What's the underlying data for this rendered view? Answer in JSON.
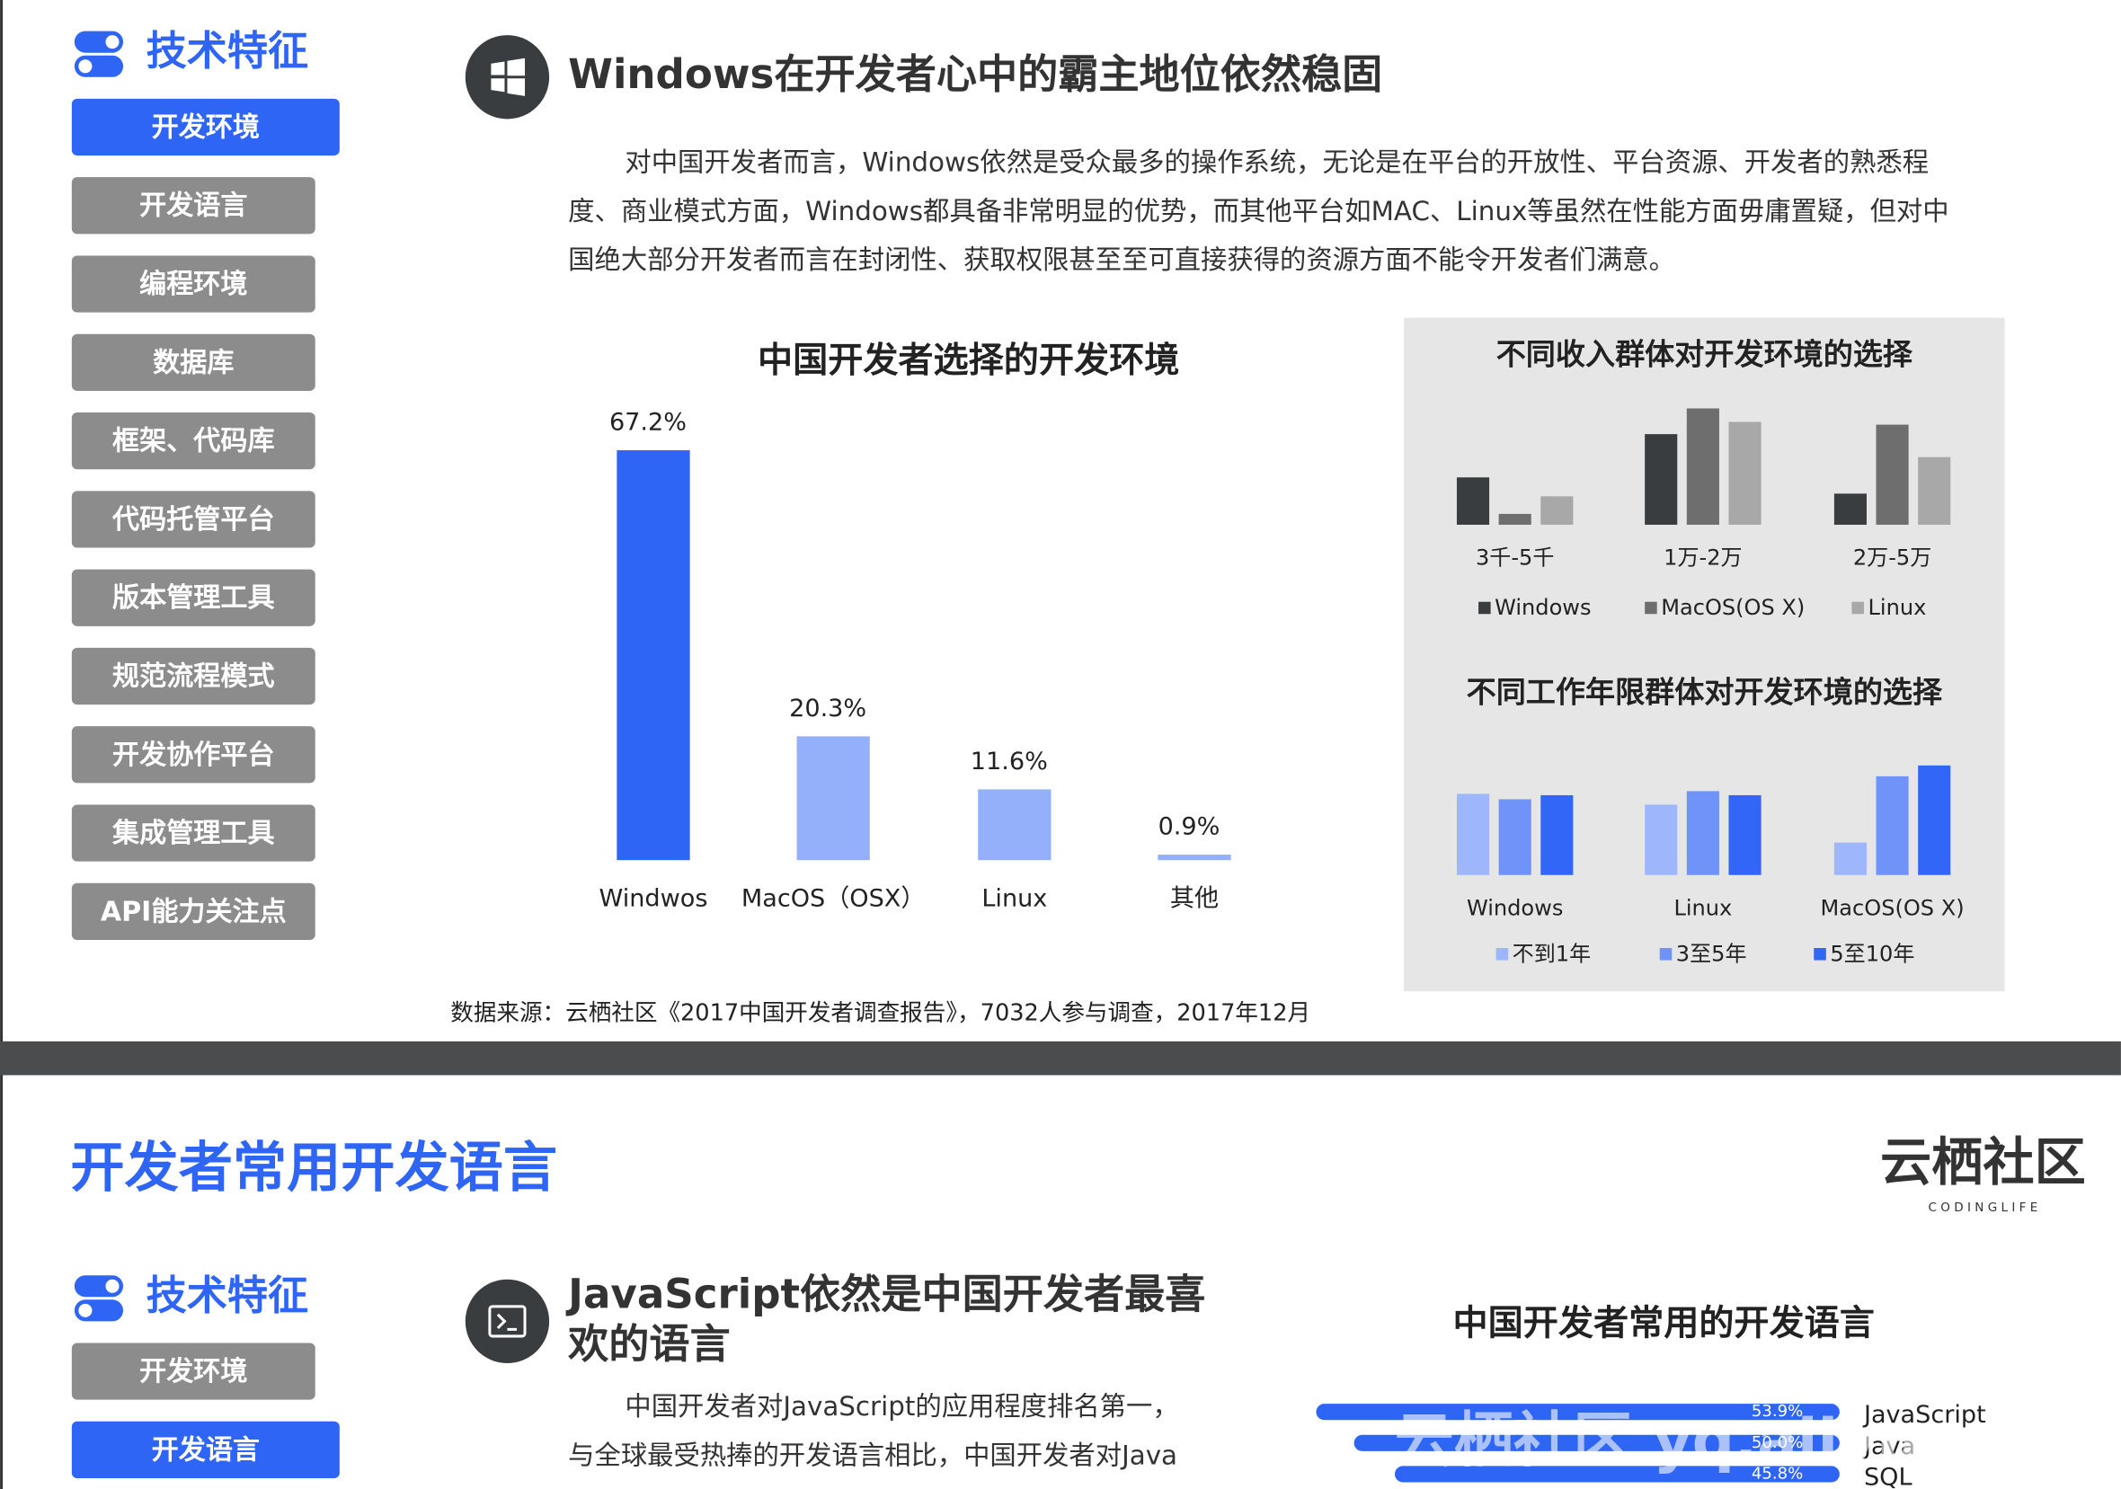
{
  "page1": {
    "sidebar": {
      "title": "技术特征",
      "items": [
        "开发环境",
        "开发语言",
        "编程环境",
        "数据库",
        "框架、代码库",
        "代码托管平台",
        "版本管理工具",
        "规范流程模式",
        "开发协作平台",
        "集成管理工具",
        "API能力关注点"
      ],
      "active": 0
    },
    "heading": "Windows在开发者心中的霸主地位依然稳固",
    "paragraph_lines": [
      "对中国开发者而言，Windows依然是受众最多的操作系统，无论是在平台的开放性、平台资源、开发者的熟悉程",
      "度、商业模式方面，Windows都具备非常明显的优势，而其他平台如MAC、Linux等虽然在性能方面毋庸置疑，但对中",
      "国绝大部分开发者而言在封闭性、获取权限甚至至可直接获得的资源方面不能令开发者们满意。"
    ],
    "main_chart": {
      "type": "bar",
      "title": "中国开发者选择的开发环境",
      "categories": [
        "Windwos",
        "MacOS（OSX）",
        "Linux",
        "其他"
      ],
      "values": [
        67.2,
        20.3,
        11.6,
        0.9
      ],
      "value_labels": [
        "67.2%",
        "20.3%",
        "11.6%",
        "0.9%"
      ],
      "colors": [
        "#2f65f5",
        "#94b0fb",
        "#94b0fb",
        "#94b0fb"
      ]
    },
    "income_chart": {
      "type": "bar",
      "title": "不同收入群体对开发环境的选择",
      "categories": [
        "3千-5千",
        "1万-2万",
        "2万-5万"
      ],
      "series": [
        {
          "name": "Windows",
          "color": "#3a3d40",
          "values": [
            35,
            67,
            23
          ]
        },
        {
          "name": "MacOS(OS X)",
          "color": "#6e6e6e",
          "values": [
            8,
            86,
            74
          ]
        },
        {
          "name": "Linux",
          "color": "#a8a8a8",
          "values": [
            21,
            76,
            50
          ]
        }
      ]
    },
    "years_chart": {
      "type": "bar",
      "title": "不同工作年限群体对开发环境的选择",
      "categories": [
        "Windows",
        "Linux",
        "MacOS(OS X)"
      ],
      "series": [
        {
          "name": "不到1年",
          "color": "#9db6fc",
          "values": [
            60,
            52,
            24
          ]
        },
        {
          "name": "3至5年",
          "color": "#6f93f8",
          "values": [
            56,
            62,
            73
          ]
        },
        {
          "name": "5至10年",
          "color": "#3166f6",
          "values": [
            59,
            59,
            81
          ]
        }
      ]
    },
    "source": "数据来源：云栖社区《2017中国开发者调查报告》，7032人参与调查，2017年12月"
  },
  "page2": {
    "title": "开发者常用开发语言",
    "logo": "云栖社区",
    "logo_sub": "C O D I N G   L I F E",
    "sidebar": {
      "title": "技术特征",
      "items": [
        "开发环境",
        "开发语言"
      ],
      "active": 1
    },
    "heading_lines": [
      "JavaScript依然是中国开发者最喜",
      "欢的语言"
    ],
    "paragraph_lines": [
      "中国开发者对JavaScript的应用程度排名第一，",
      "与全球最受热捧的开发语言相比，中国开发者对Java"
    ],
    "lang_chart": {
      "type": "hbar",
      "title": "中国开发者常用的开发语言",
      "categories": [
        "JavaScript",
        "Java",
        "SQL"
      ],
      "values": [
        53.9,
        50.0,
        45.8
      ],
      "value_labels": [
        "53.9%",
        "50.0%",
        "45.8%"
      ],
      "color": "#2f65f5"
    },
    "watermark": "云栖社区 yq.aliyun.com"
  }
}
